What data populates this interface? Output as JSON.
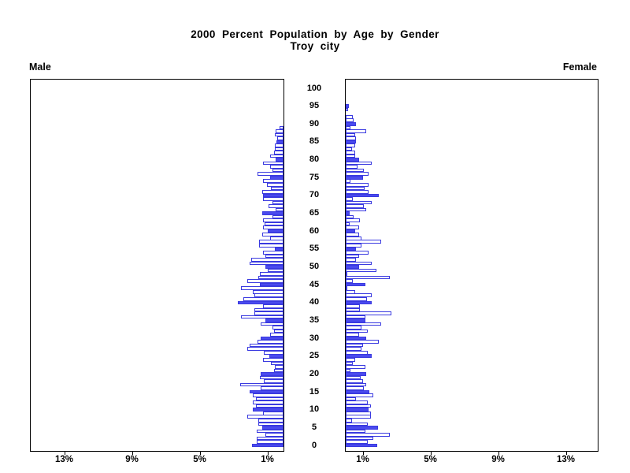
{
  "header": {
    "title": "2000 Percent Population by Age by Gender",
    "subtitle": "Troy city"
  },
  "panels": {
    "left_label": "Male",
    "right_label": "Female"
  },
  "chart_data": {
    "type": "bar",
    "variant": "population-pyramid",
    "title": "2000 Percent Population by Age by Gender",
    "subtitle": "Troy city",
    "x_unit": "percent of population",
    "xlim": [
      0,
      15
    ],
    "x_ticks": [
      1,
      5,
      9,
      13
    ],
    "x_tick_labels": [
      "1%",
      "5%",
      "9%",
      "13%"
    ],
    "age_axis_label_ticks": [
      0,
      5,
      10,
      15,
      20,
      25,
      30,
      35,
      40,
      45,
      50,
      55,
      60,
      65,
      70,
      75,
      80,
      85,
      90,
      95,
      100
    ],
    "age_min": 0,
    "age_max": 100,
    "bar_per": "single year of age",
    "highlight_rule": "bars for ages divisible by 5 are solid filled; other ages are hollow outline",
    "legend_position": "none",
    "grid": false,
    "colors": {
      "bar_outline": "#3a3ae0",
      "bar_fill_highlight": "#4a4aee",
      "bar_fill_normal": "#ffffff",
      "frame": "#000000",
      "text": "#000000"
    },
    "series": [
      {
        "name": "Male",
        "side": "left",
        "values_by_age_0_to_100": [
          1.85,
          1.6,
          1.6,
          1.05,
          1.6,
          1.25,
          1.5,
          1.5,
          2.15,
          1.2,
          1.8,
          1.65,
          1.8,
          1.65,
          1.8,
          2.0,
          1.35,
          2.55,
          1.15,
          1.4,
          1.35,
          0.55,
          0.5,
          0.75,
          1.2,
          0.85,
          1.15,
          2.15,
          2.0,
          1.55,
          1.35,
          0.8,
          0.55,
          0.65,
          1.35,
          1.05,
          2.5,
          1.7,
          1.7,
          1.2,
          2.7,
          2.35,
          1.7,
          1.8,
          2.5,
          1.4,
          2.15,
          1.5,
          1.4,
          0.95,
          1.05,
          2.0,
          1.9,
          1.05,
          1.2,
          0.5,
          1.45,
          1.45,
          0.8,
          1.25,
          0.95,
          1.2,
          1.1,
          1.2,
          0.65,
          1.25,
          0.45,
          0.9,
          0.65,
          1.2,
          1.2,
          1.25,
          0.75,
          1.0,
          1.2,
          0.8,
          1.55,
          0.65,
          0.8,
          1.2,
          0.45,
          0.8,
          0.55,
          0.5,
          0.5,
          0.4,
          0.35,
          0.5,
          0.45,
          0.25,
          0,
          0,
          0,
          0,
          0,
          0,
          0,
          0,
          0,
          0,
          0
        ]
      },
      {
        "name": "Female",
        "side": "right",
        "values_by_age_0_to_100": [
          1.85,
          1.3,
          1.65,
          2.6,
          1.15,
          1.9,
          1.3,
          0.35,
          1.5,
          1.5,
          1.35,
          1.5,
          1.3,
          0.6,
          1.65,
          1.4,
          1.05,
          1.2,
          1.0,
          0.9,
          1.2,
          0.3,
          1.15,
          0.4,
          0.55,
          1.55,
          1.3,
          0.95,
          1.0,
          1.95,
          1.2,
          0.8,
          1.3,
          0.95,
          2.1,
          1.15,
          1.15,
          2.7,
          0.85,
          0.85,
          1.55,
          1.25,
          1.55,
          0.55,
          0.1,
          1.15,
          0.4,
          2.6,
          0.1,
          1.8,
          0.8,
          1.55,
          0.6,
          0.8,
          1.35,
          0.6,
          0.95,
          2.1,
          0.95,
          0.8,
          0.55,
          0.8,
          0.25,
          0.85,
          0.45,
          0.25,
          1.2,
          1.05,
          1.55,
          0.4,
          1.95,
          1.35,
          1.1,
          1.35,
          0.3,
          1.0,
          1.35,
          1.05,
          0.7,
          1.55,
          0.8,
          0.55,
          0.55,
          0.35,
          0.55,
          0.6,
          0.6,
          0.55,
          1.2,
          0.3,
          0.6,
          0.45,
          0.4,
          0.0,
          0.15,
          0.2,
          0,
          0,
          0,
          0,
          0
        ]
      }
    ]
  }
}
